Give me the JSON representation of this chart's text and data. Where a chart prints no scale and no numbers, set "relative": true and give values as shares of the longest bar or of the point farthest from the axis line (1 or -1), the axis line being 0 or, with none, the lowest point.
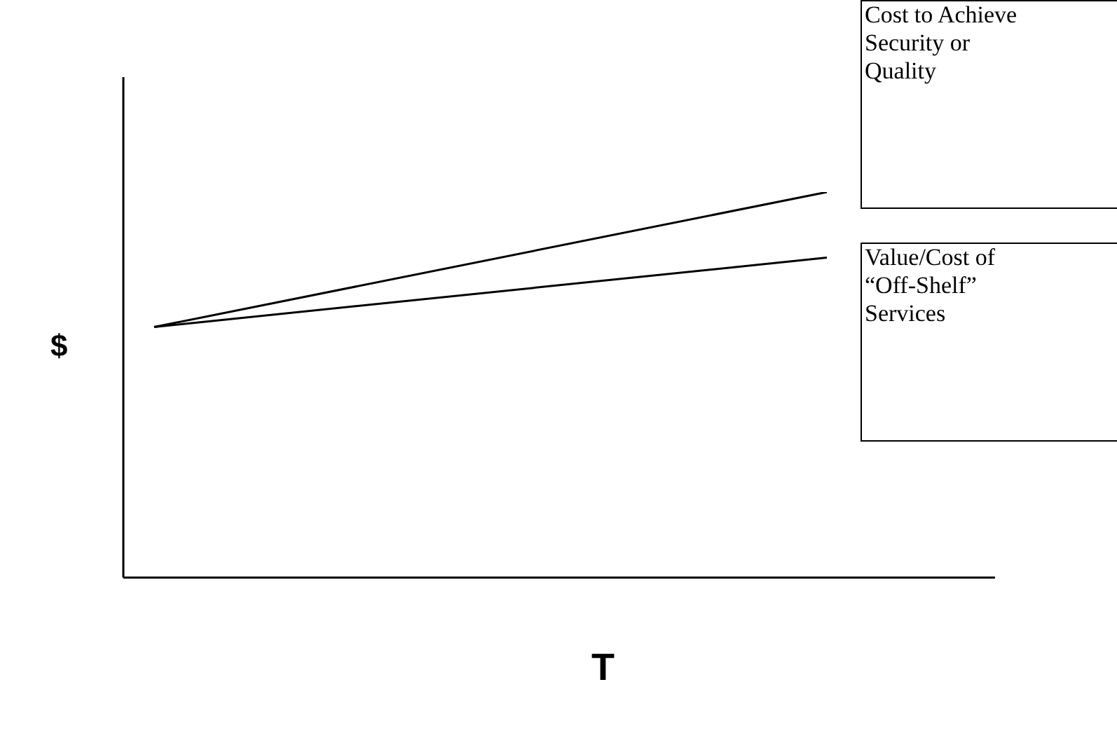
{
  "chart_data": {
    "type": "line",
    "relative": true,
    "xlabel": "T",
    "ylabel": "$",
    "categories": [
      null,
      null
    ],
    "series": [
      {
        "name": "Cost to Achieve Security or Quality",
        "color": "#000000",
        "values": [
          0.65,
          1
        ]
      },
      {
        "name": "Value/Cost of “Off-Shelf” Services",
        "color": "#000000",
        "values": [
          0.65,
          0.83
        ]
      }
    ],
    "legend": false,
    "marker": "none",
    "line_style": "solid"
  }
}
